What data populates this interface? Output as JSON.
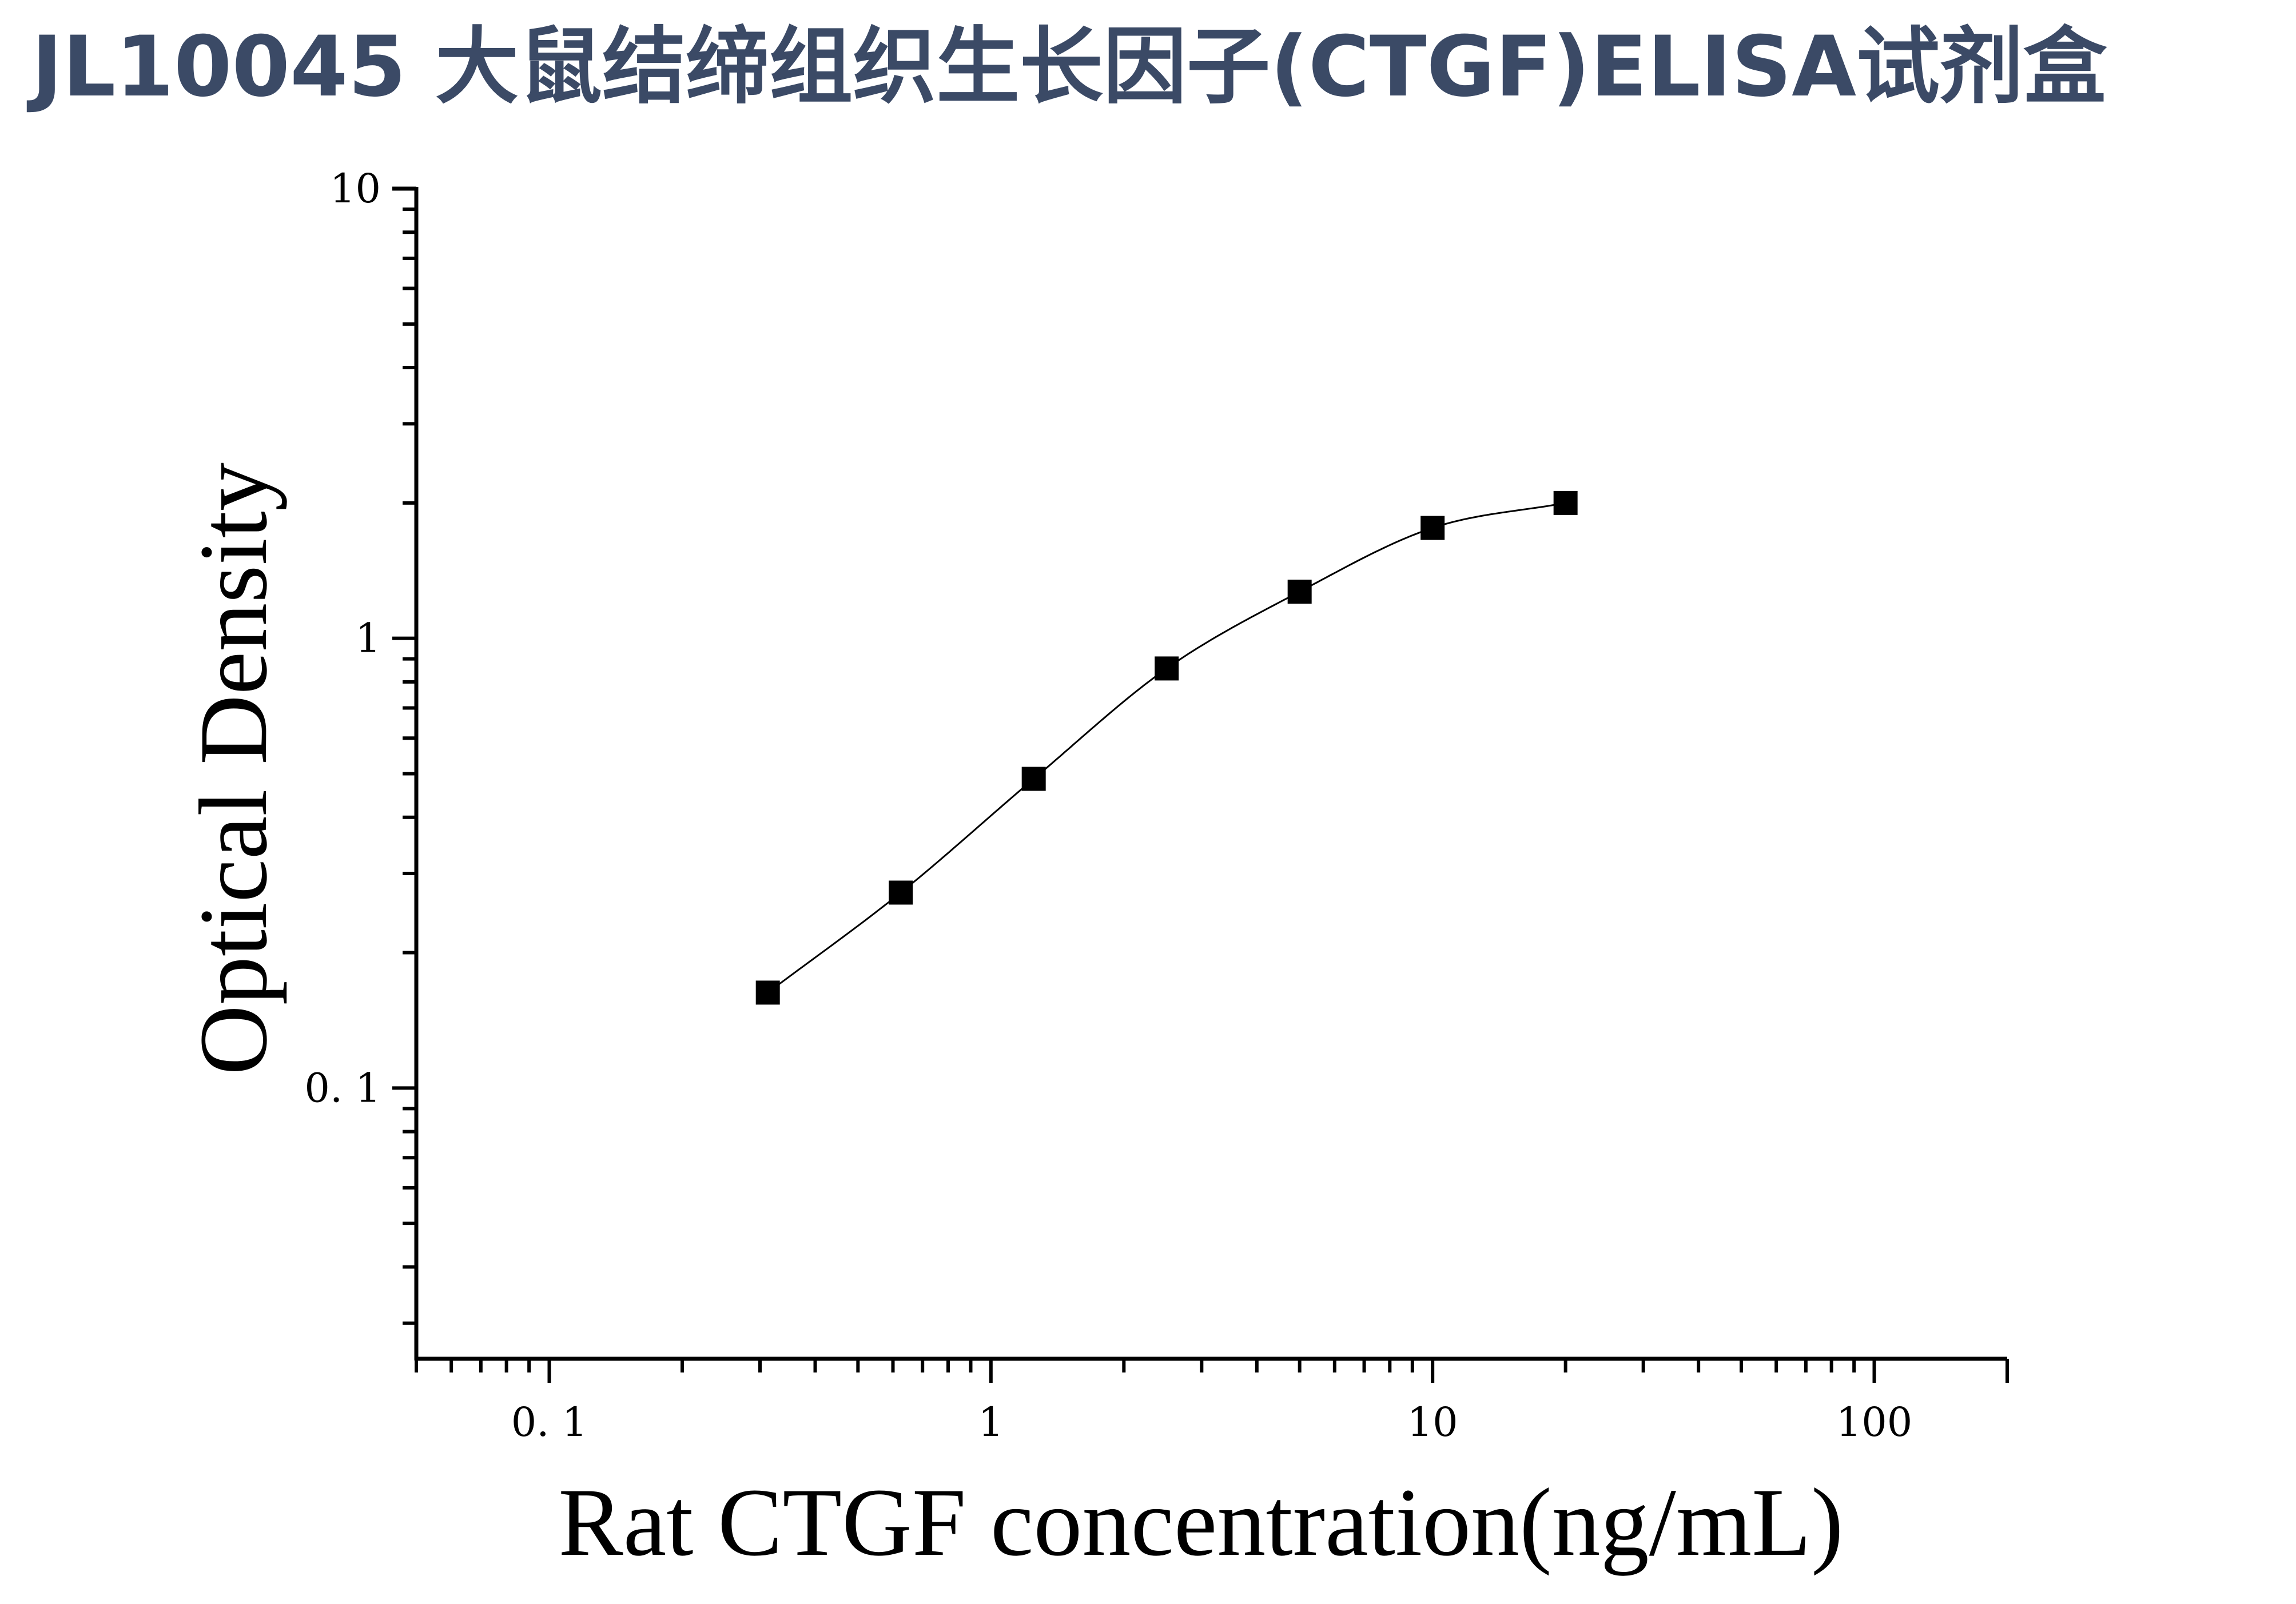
{
  "page_title": "JL10045 大鼠结缔组织生长因子(CTGF)ELISA试剂盒",
  "colors": {
    "title": "#3b4a66",
    "axis": "#000000",
    "marker": "#000000",
    "curve": "#000000"
  },
  "chart_data": {
    "type": "scatter",
    "title": "",
    "xlabel": "Rat CTGF concentration(ng/mL)",
    "ylabel": "Optical Density",
    "x_scale": "log",
    "y_scale": "log",
    "xlim": [
      0.05,
      200
    ],
    "ylim": [
      0.025,
      10
    ],
    "x_ticks": [
      {
        "value": 0.1,
        "label": "0. 1"
      },
      {
        "value": 1,
        "label": "1"
      },
      {
        "value": 10,
        "label": "10"
      },
      {
        "value": 100,
        "label": "100"
      }
    ],
    "y_ticks": [
      {
        "value": 0.1,
        "label": "0. 1"
      },
      {
        "value": 1,
        "label": "1"
      },
      {
        "value": 10,
        "label": "10"
      }
    ],
    "grid": false,
    "legend": "none",
    "fit_curve": true,
    "series": [
      {
        "marker": "square",
        "x": [
          0.3125,
          0.625,
          1.25,
          2.5,
          5,
          10,
          20
        ],
        "y": [
          0.163,
          0.272,
          0.487,
          0.857,
          1.27,
          1.76,
          2.0
        ]
      }
    ]
  }
}
